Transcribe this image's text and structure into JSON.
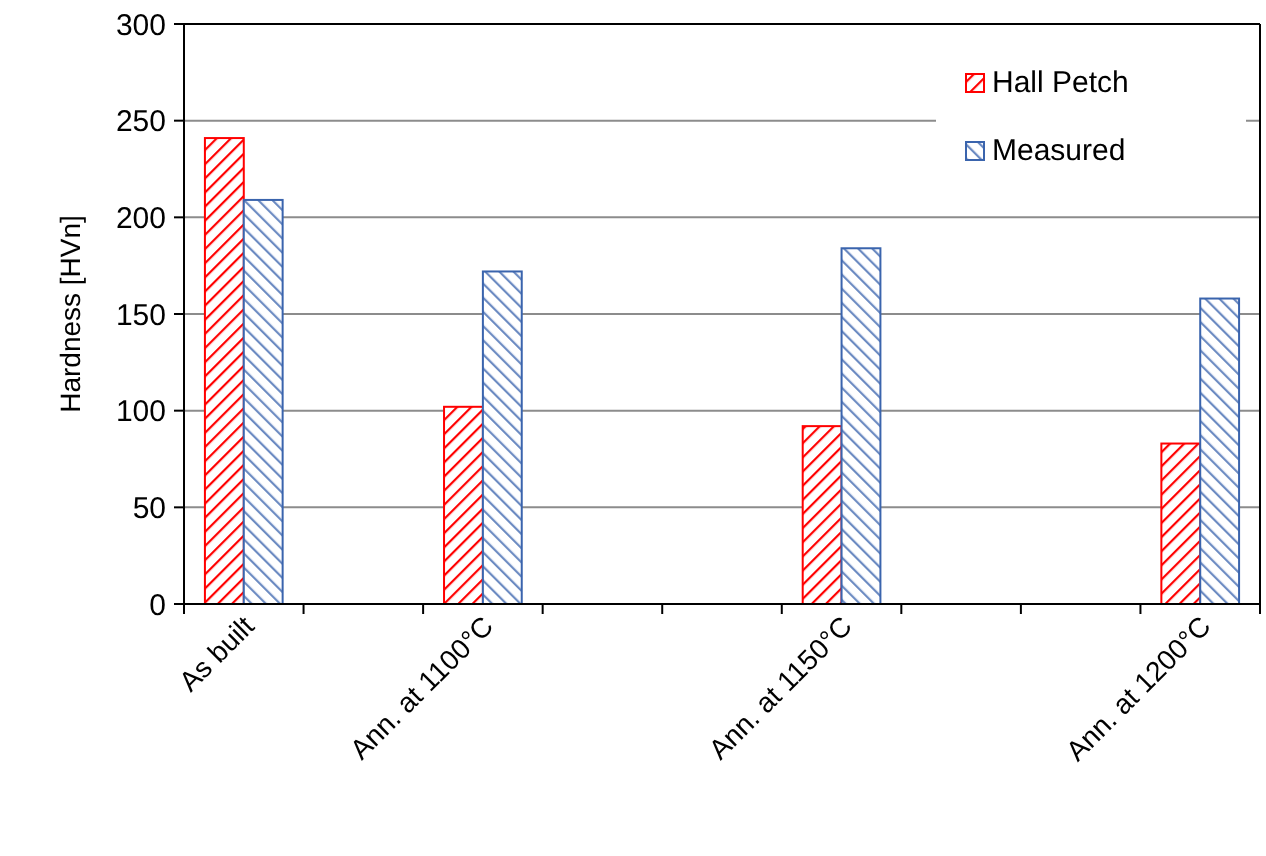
{
  "chart_data": {
    "type": "bar",
    "ylabel": "Hardness [HVn]",
    "categories": [
      "As built",
      null,
      "Ann. at 1100°C",
      null,
      null,
      "Ann. at 1150°C",
      null,
      null,
      "Ann. at 1200°C"
    ],
    "series": [
      {
        "name": "Hall Petch",
        "color": "#ff0000",
        "values": [
          241,
          null,
          102,
          null,
          null,
          92,
          null,
          null,
          83
        ]
      },
      {
        "name": "Measured",
        "color": "#3a64ad",
        "values": [
          209,
          null,
          172,
          null,
          null,
          184,
          null,
          null,
          158
        ]
      }
    ],
    "ylim": [
      0,
      300
    ],
    "yticks": [
      0,
      50,
      100,
      150,
      200,
      250,
      300
    ],
    "grid": "y",
    "legend": "top right"
  }
}
